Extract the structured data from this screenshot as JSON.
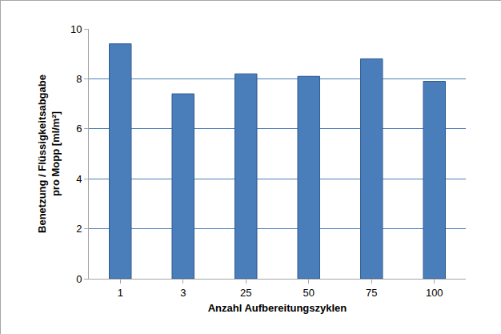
{
  "chart_data": {
    "type": "bar",
    "x_label": "Anzahl Aufbereitungszyklen",
    "y_label": "Benetzung / Flüssigkeitsabgabe pro Mopp [ml/m²]",
    "categories": [
      "1",
      "3",
      "25",
      "50",
      "75",
      "100"
    ],
    "values": [
      9.4,
      7.4,
      8.2,
      8.1,
      8.8,
      7.9
    ],
    "color": "#4a7ebb",
    "ylim": [
      0,
      10
    ],
    "yticks": [
      0,
      2,
      4,
      6,
      8,
      10
    ],
    "grid": true
  }
}
